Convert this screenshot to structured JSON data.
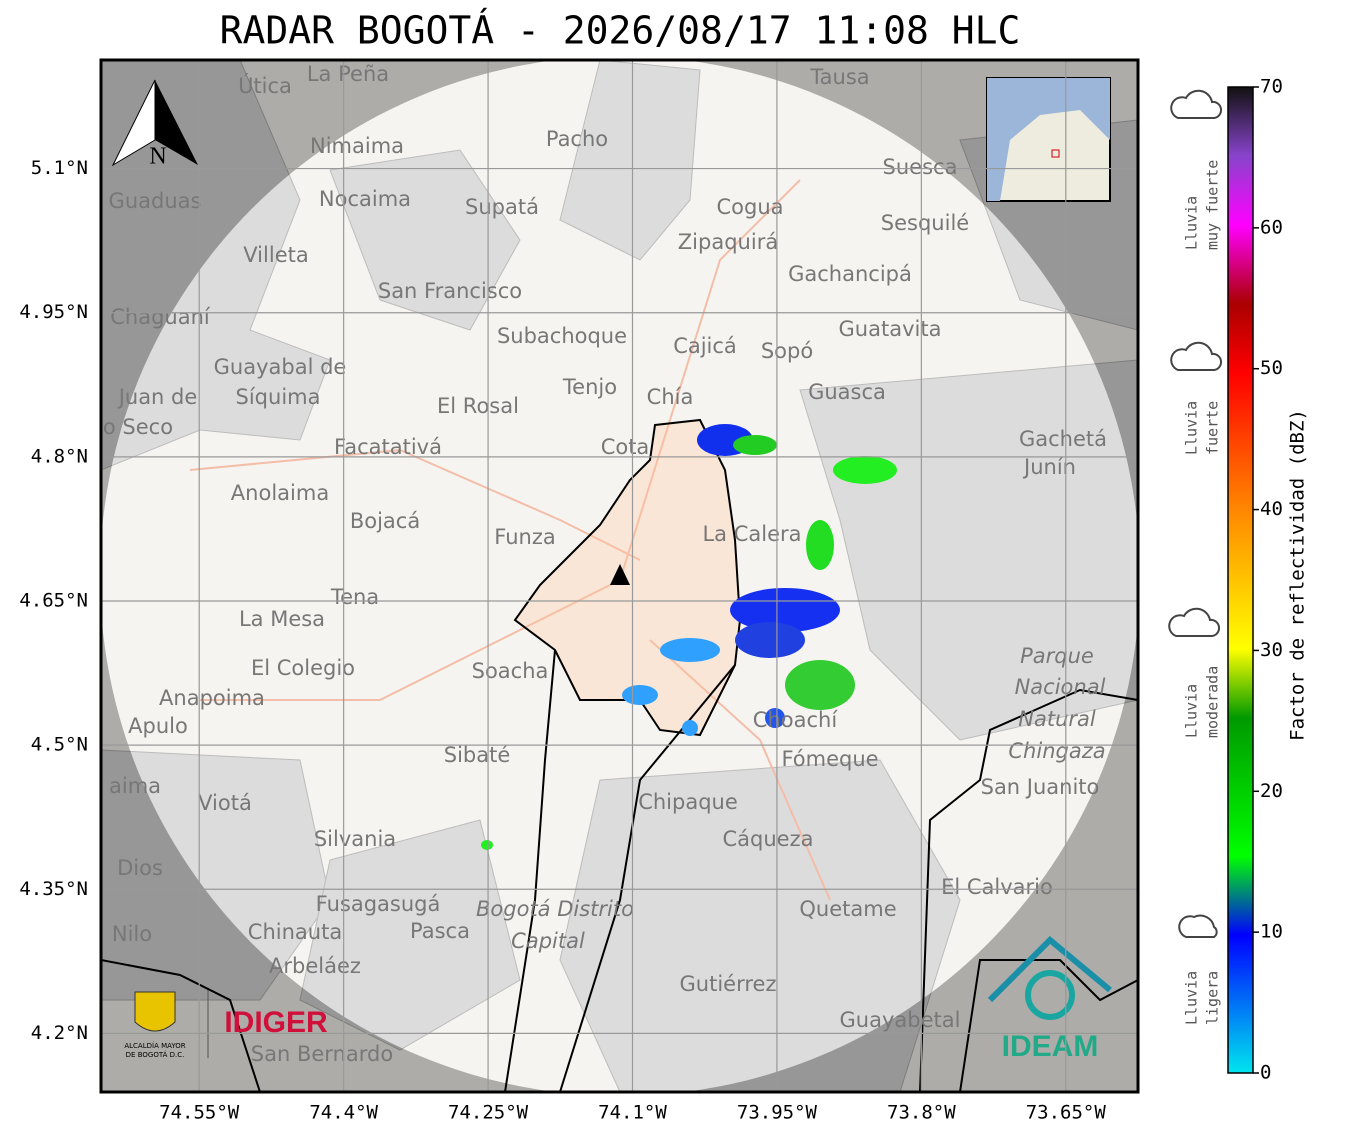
{
  "title": "RADAR BOGOTÁ - 2026/08/17 11:08 HLC",
  "map": {
    "lat_range": [
      4.139,
      5.213
    ],
    "lon_range": [
      -74.652,
      -73.575
    ],
    "lat_ticks": [
      {
        "value": 4.2,
        "label": "4.2°N"
      },
      {
        "value": 4.35,
        "label": "4.35°N"
      },
      {
        "value": 4.5,
        "label": "4.5°N"
      },
      {
        "value": 4.65,
        "label": "4.65°N"
      },
      {
        "value": 4.8,
        "label": "4.8°N"
      },
      {
        "value": 4.95,
        "label": "4.95°N"
      },
      {
        "value": 5.1,
        "label": "5.1°N"
      }
    ],
    "lon_ticks": [
      {
        "value": -74.55,
        "label": "74.55°W"
      },
      {
        "value": -74.4,
        "label": "74.4°W"
      },
      {
        "value": -74.25,
        "label": "74.25°W"
      },
      {
        "value": -74.1,
        "label": "74.1°W"
      },
      {
        "value": -73.95,
        "label": "73.95°W"
      },
      {
        "value": -73.8,
        "label": "73.8°W"
      },
      {
        "value": -73.65,
        "label": "73.65°W"
      }
    ],
    "places": [
      "La Peña",
      "Útica",
      "Tausa",
      "Pacho",
      "Nimaima",
      "Suesca",
      "Guaduas",
      "Nocaima",
      "Supatá",
      "Cogua",
      "Sesquilé",
      "Zipaquirá",
      "Villeta",
      "Gachancipá",
      "San Francisco",
      "Chaguaní",
      "Guatavita",
      "Subachoque",
      "Cajicá",
      "Sopó",
      "Guayabal de",
      "Síquima",
      "Tenjo",
      "Guasca",
      "El Rosal",
      "Juan de",
      "o Seco",
      "Chía",
      "Gachetá",
      "Junín",
      "Facatativá",
      "Cota",
      "Anolaima",
      "Bojacá",
      "Funza",
      "La Calera",
      "Tena",
      "La Mesa",
      "El Colegio",
      "Soacha",
      "Parque",
      "Nacional",
      "Natural",
      "Chingaza",
      "Anapoima",
      "Apulo",
      "Choachí",
      "Fómeque",
      "Sibaté",
      "San Juanito",
      "aima",
      "Viotá",
      "Chipaque",
      "Silvania",
      "Cáqueza",
      "Dios",
      "El Calvario",
      "Fusagasugá",
      "Bogotá Distrito",
      "Capital",
      "Quetame",
      "Nilo",
      "Chinauta",
      "Pasca",
      "Arbeláez",
      "Gutiérrez",
      "Guayabetal",
      "San Bernardo"
    ],
    "north": "N"
  },
  "colorbar": {
    "label": "Factor de reflectividad (dBZ)",
    "lim": [
      0,
      70
    ],
    "ticks": [
      0,
      10,
      20,
      30,
      40,
      50,
      60,
      70
    ]
  },
  "rain_classes": [
    [
      "Lluvia",
      "muy fuerte"
    ],
    [
      "Lluvia",
      "fuerte"
    ],
    [
      "Lluvia",
      "moderada"
    ],
    [
      "Lluvia",
      "ligera"
    ]
  ],
  "logos": {
    "alcaldia": [
      "ALCALDÍA MAYOR",
      "DE BOGOTÁ D.C."
    ],
    "idiger": "IDIGER",
    "ideam": "IDEAM"
  }
}
